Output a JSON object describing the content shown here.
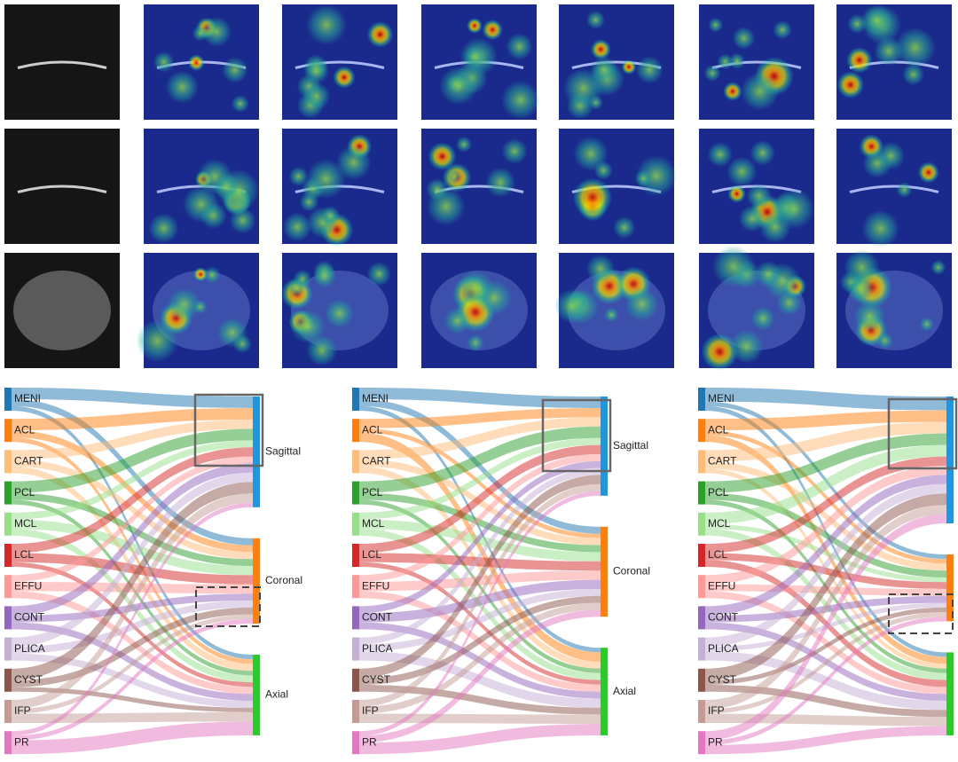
{
  "source_colors": [
    "#1f77b4",
    "#ff7f0e",
    "#ffbb78",
    "#2ca02c",
    "#98df8a",
    "#d62728",
    "#ff9896",
    "#9467bd",
    "#c5b0d5",
    "#8c564b",
    "#c49c94",
    "#e377c2"
  ],
  "target_colors": [
    "#1f96e0",
    "#ff7f0e",
    "#2bcb2b"
  ],
  "sankeys": [
    {
      "sources": [
        "MENI",
        "ACL",
        "CART",
        "PCL",
        "MCL",
        "LCL",
        "EFFU",
        "CONT",
        "PLICA",
        "CYST",
        "IFP",
        "PR"
      ],
      "targets": [
        "Sagittal",
        "Coronal",
        "Axial"
      ],
      "flows": [
        [
          5,
          3,
          2
        ],
        [
          5,
          3,
          2
        ],
        [
          4,
          3,
          3
        ],
        [
          5,
          3,
          2
        ],
        [
          3,
          4,
          3
        ],
        [
          4,
          4,
          2
        ],
        [
          3,
          4,
          3
        ],
        [
          4,
          3,
          3
        ],
        [
          4,
          3,
          3
        ],
        [
          5,
          3,
          2
        ],
        [
          4,
          2,
          4
        ],
        [
          2,
          2,
          6
        ]
      ]
    },
    {
      "sources": [
        "MENI",
        "ACL",
        "CART",
        "PCL",
        "MCL",
        "LCL",
        "EFFU",
        "CONT",
        "PLICA",
        "CYST",
        "IFP",
        "PR"
      ],
      "targets": [
        "Sagittal",
        "Coronal",
        "Axial"
      ],
      "flows": [
        [
          5,
          3,
          2
        ],
        [
          4,
          2,
          4
        ],
        [
          4,
          3,
          3
        ],
        [
          5,
          3,
          2
        ],
        [
          3,
          4,
          3
        ],
        [
          4,
          4,
          2
        ],
        [
          3,
          4,
          3
        ],
        [
          3,
          4,
          3
        ],
        [
          3,
          3,
          4
        ],
        [
          4,
          3,
          3
        ],
        [
          3,
          3,
          4
        ],
        [
          2,
          3,
          5
        ]
      ]
    },
    {
      "sources": [
        "MENI",
        "ACL",
        "CART",
        "PCL",
        "MCL",
        "LCL",
        "EFFU",
        "CONT",
        "PLICA",
        "CYST",
        "IFP",
        "PR"
      ],
      "targets": [
        "Sagittal",
        "Coronal",
        "Axial"
      ],
      "flows": [
        [
          6,
          2,
          2
        ],
        [
          5,
          2,
          3
        ],
        [
          5,
          3,
          2
        ],
        [
          5,
          3,
          2
        ],
        [
          5,
          2,
          3
        ],
        [
          4,
          3,
          3
        ],
        [
          4,
          3,
          3
        ],
        [
          4,
          3,
          3
        ],
        [
          4,
          2,
          4
        ],
        [
          5,
          2,
          3
        ],
        [
          4,
          2,
          4
        ],
        [
          4,
          2,
          4
        ]
      ]
    }
  ]
}
